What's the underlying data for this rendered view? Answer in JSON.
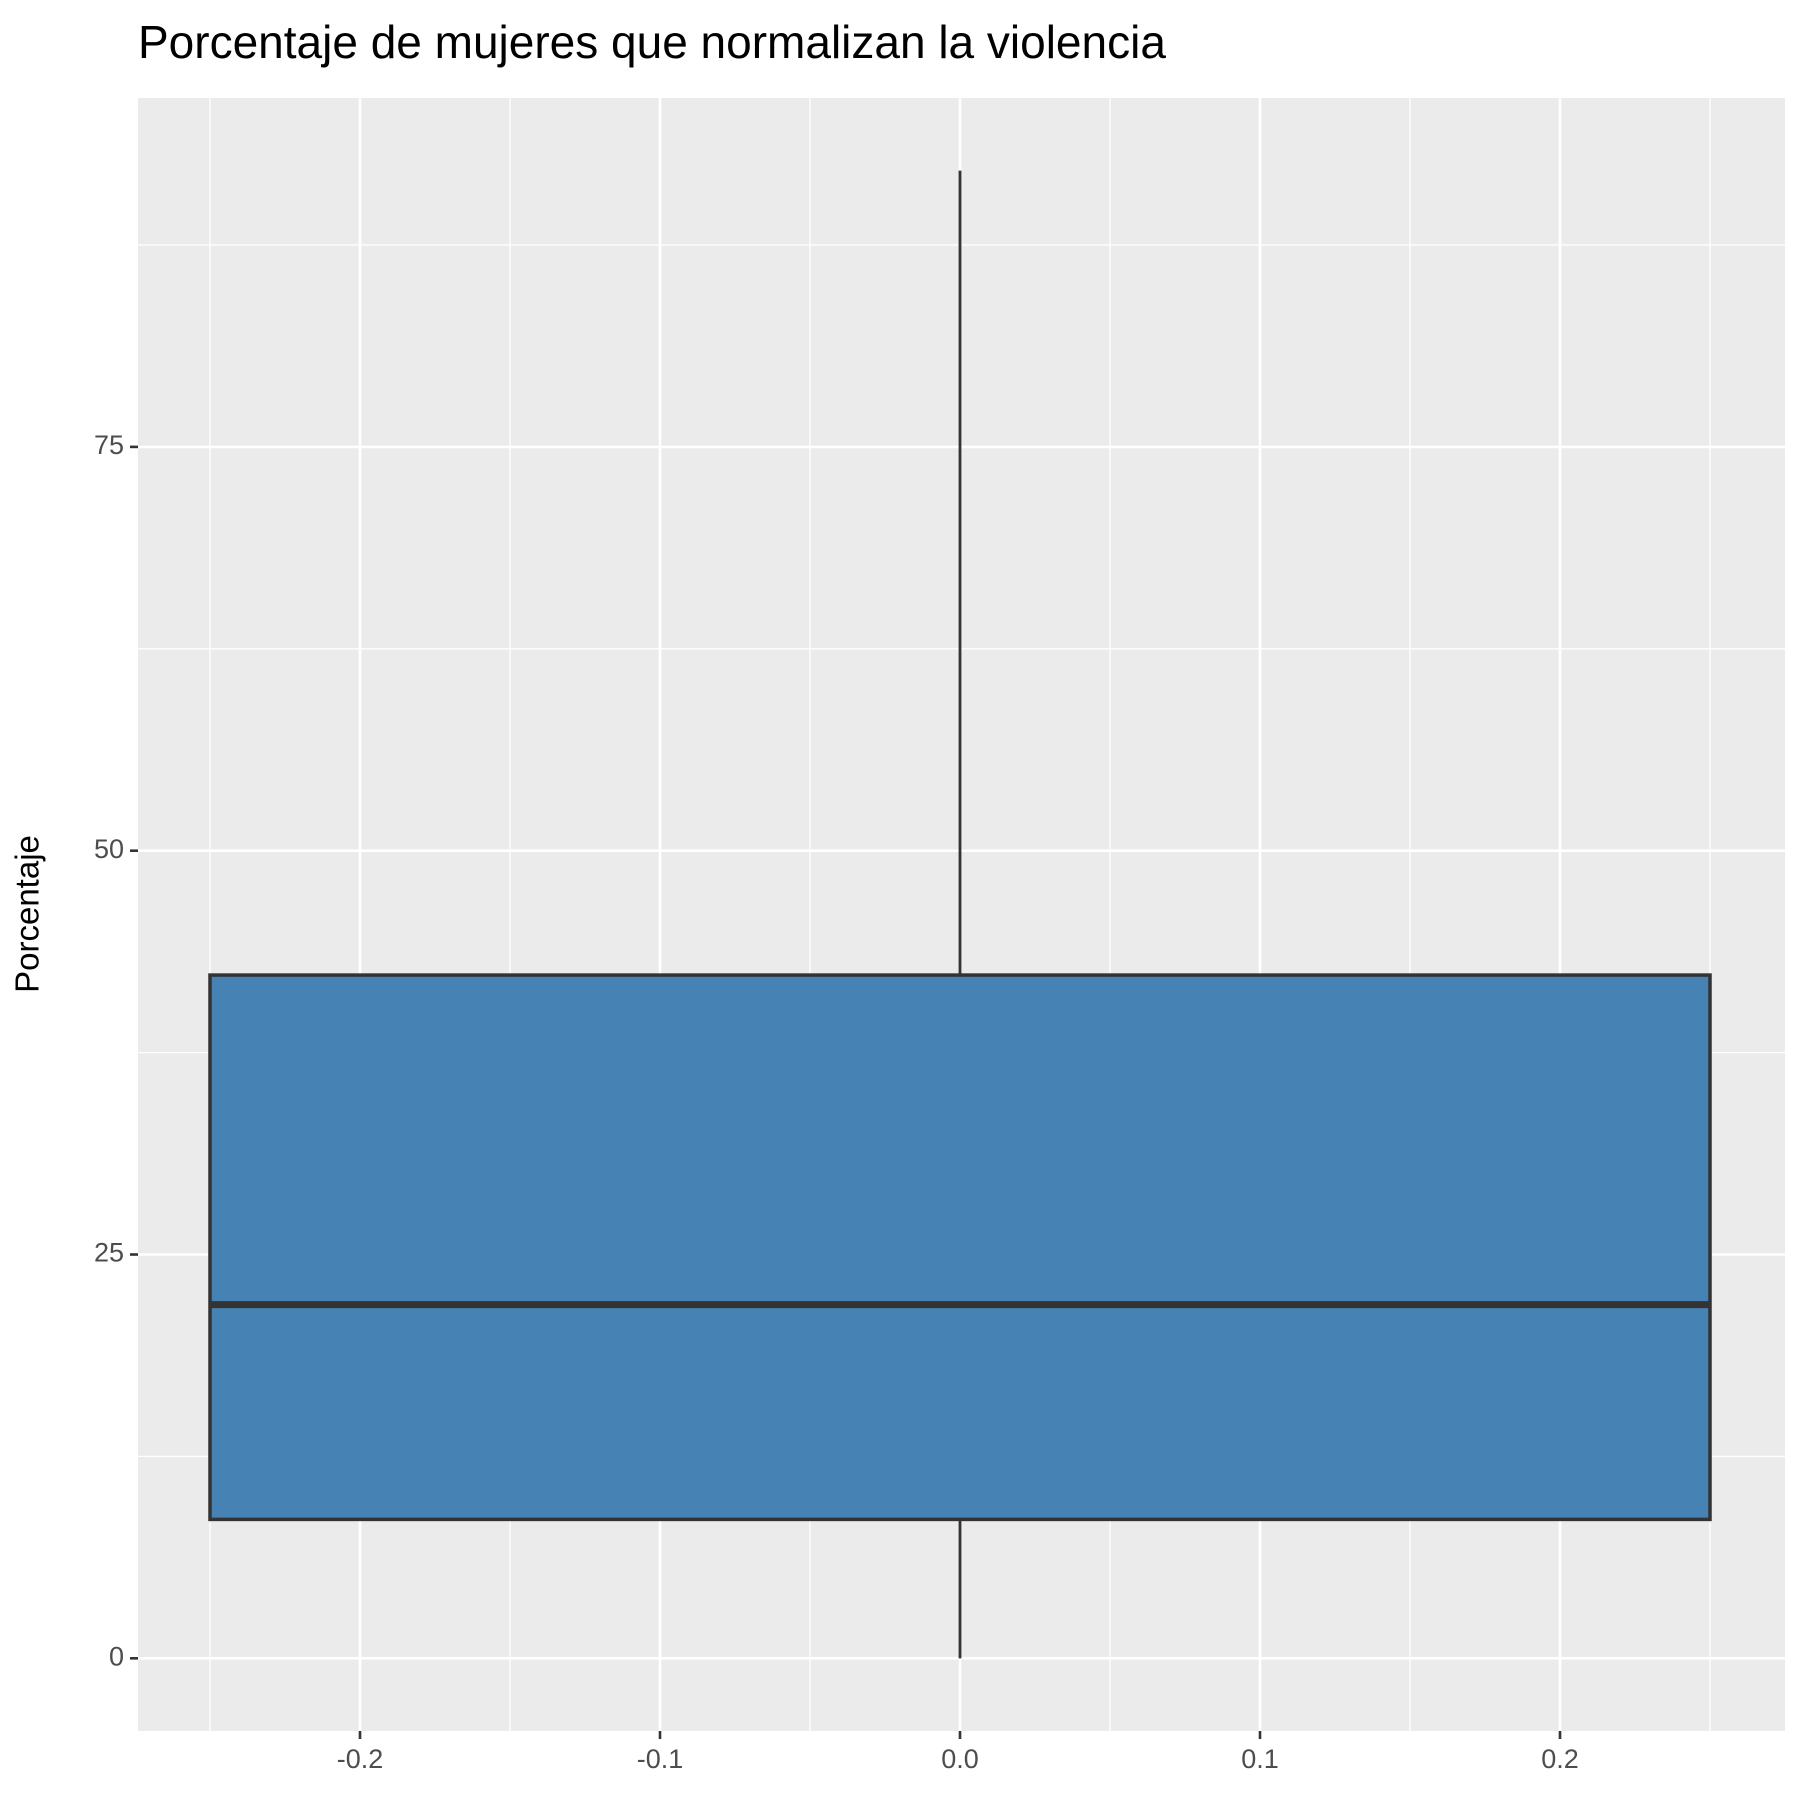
{
  "chart_data": {
    "type": "box",
    "title": "Porcentaje de mujeres que normalizan la violencia",
    "y_label": "Porcentaje",
    "boxes": [
      {
        "x": 0,
        "width": 0.5,
        "min": 0,
        "q1": 8.6,
        "median": 21.9,
        "q3": 42.3,
        "max": 92.1,
        "color": "#4682b4"
      }
    ],
    "xlim": [
      -0.274,
      0.275
    ],
    "xticks": [
      -0.2,
      -0.1,
      {
        "value": 0,
        "label": "0.0"
      },
      0.1,
      0.2
    ],
    "ylim": [
      -4.5,
      96.6
    ],
    "yticks": [
      0,
      25,
      50,
      75
    ],
    "grid": true
  }
}
